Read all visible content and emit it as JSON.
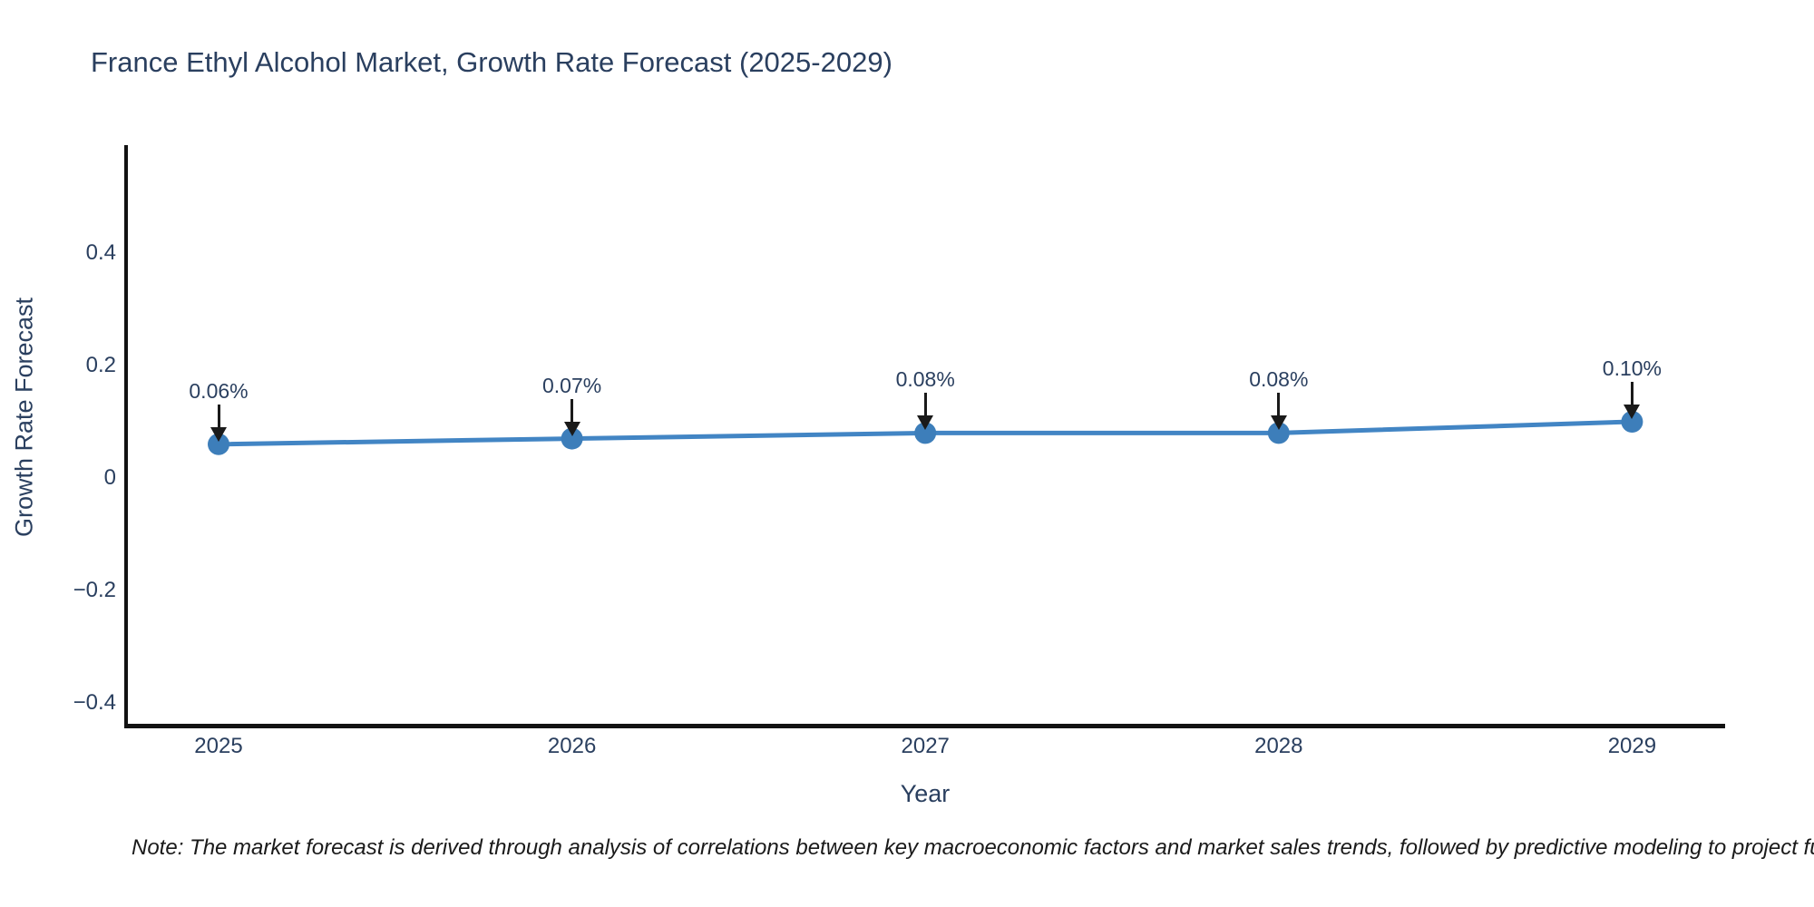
{
  "chart_data": {
    "type": "line",
    "title": "France Ethyl Alcohol Market, Growth Rate Forecast (2025-2029)",
    "xlabel": "Year",
    "ylabel": "Growth Rate Forecast",
    "categories": [
      "2025",
      "2026",
      "2027",
      "2028",
      "2029"
    ],
    "values": [
      0.06,
      0.07,
      0.08,
      0.08,
      0.1
    ],
    "data_labels": [
      "0.06%",
      "0.07%",
      "0.08%",
      "0.08%",
      "0.10%"
    ],
    "ytick_values": [
      0.4,
      0.2,
      0,
      -0.2,
      -0.4
    ],
    "ytick_labels": [
      "0.4",
      "0.2",
      "0",
      "−0.2",
      "−0.4"
    ],
    "ylim": [
      -0.44,
      0.59
    ],
    "grid": false,
    "legend": false,
    "colors": {
      "line": "#4285c4",
      "marker": "#3d7eba",
      "axis_line": "#121212",
      "text": "#2a3f5f",
      "annotation_arrow": "#1a1a1a"
    }
  },
  "note": {
    "text": "Note: The market forecast is derived through analysis of correlations between key macroeconomic factors and market sales trends, followed by predictive modeling to project future sales"
  }
}
